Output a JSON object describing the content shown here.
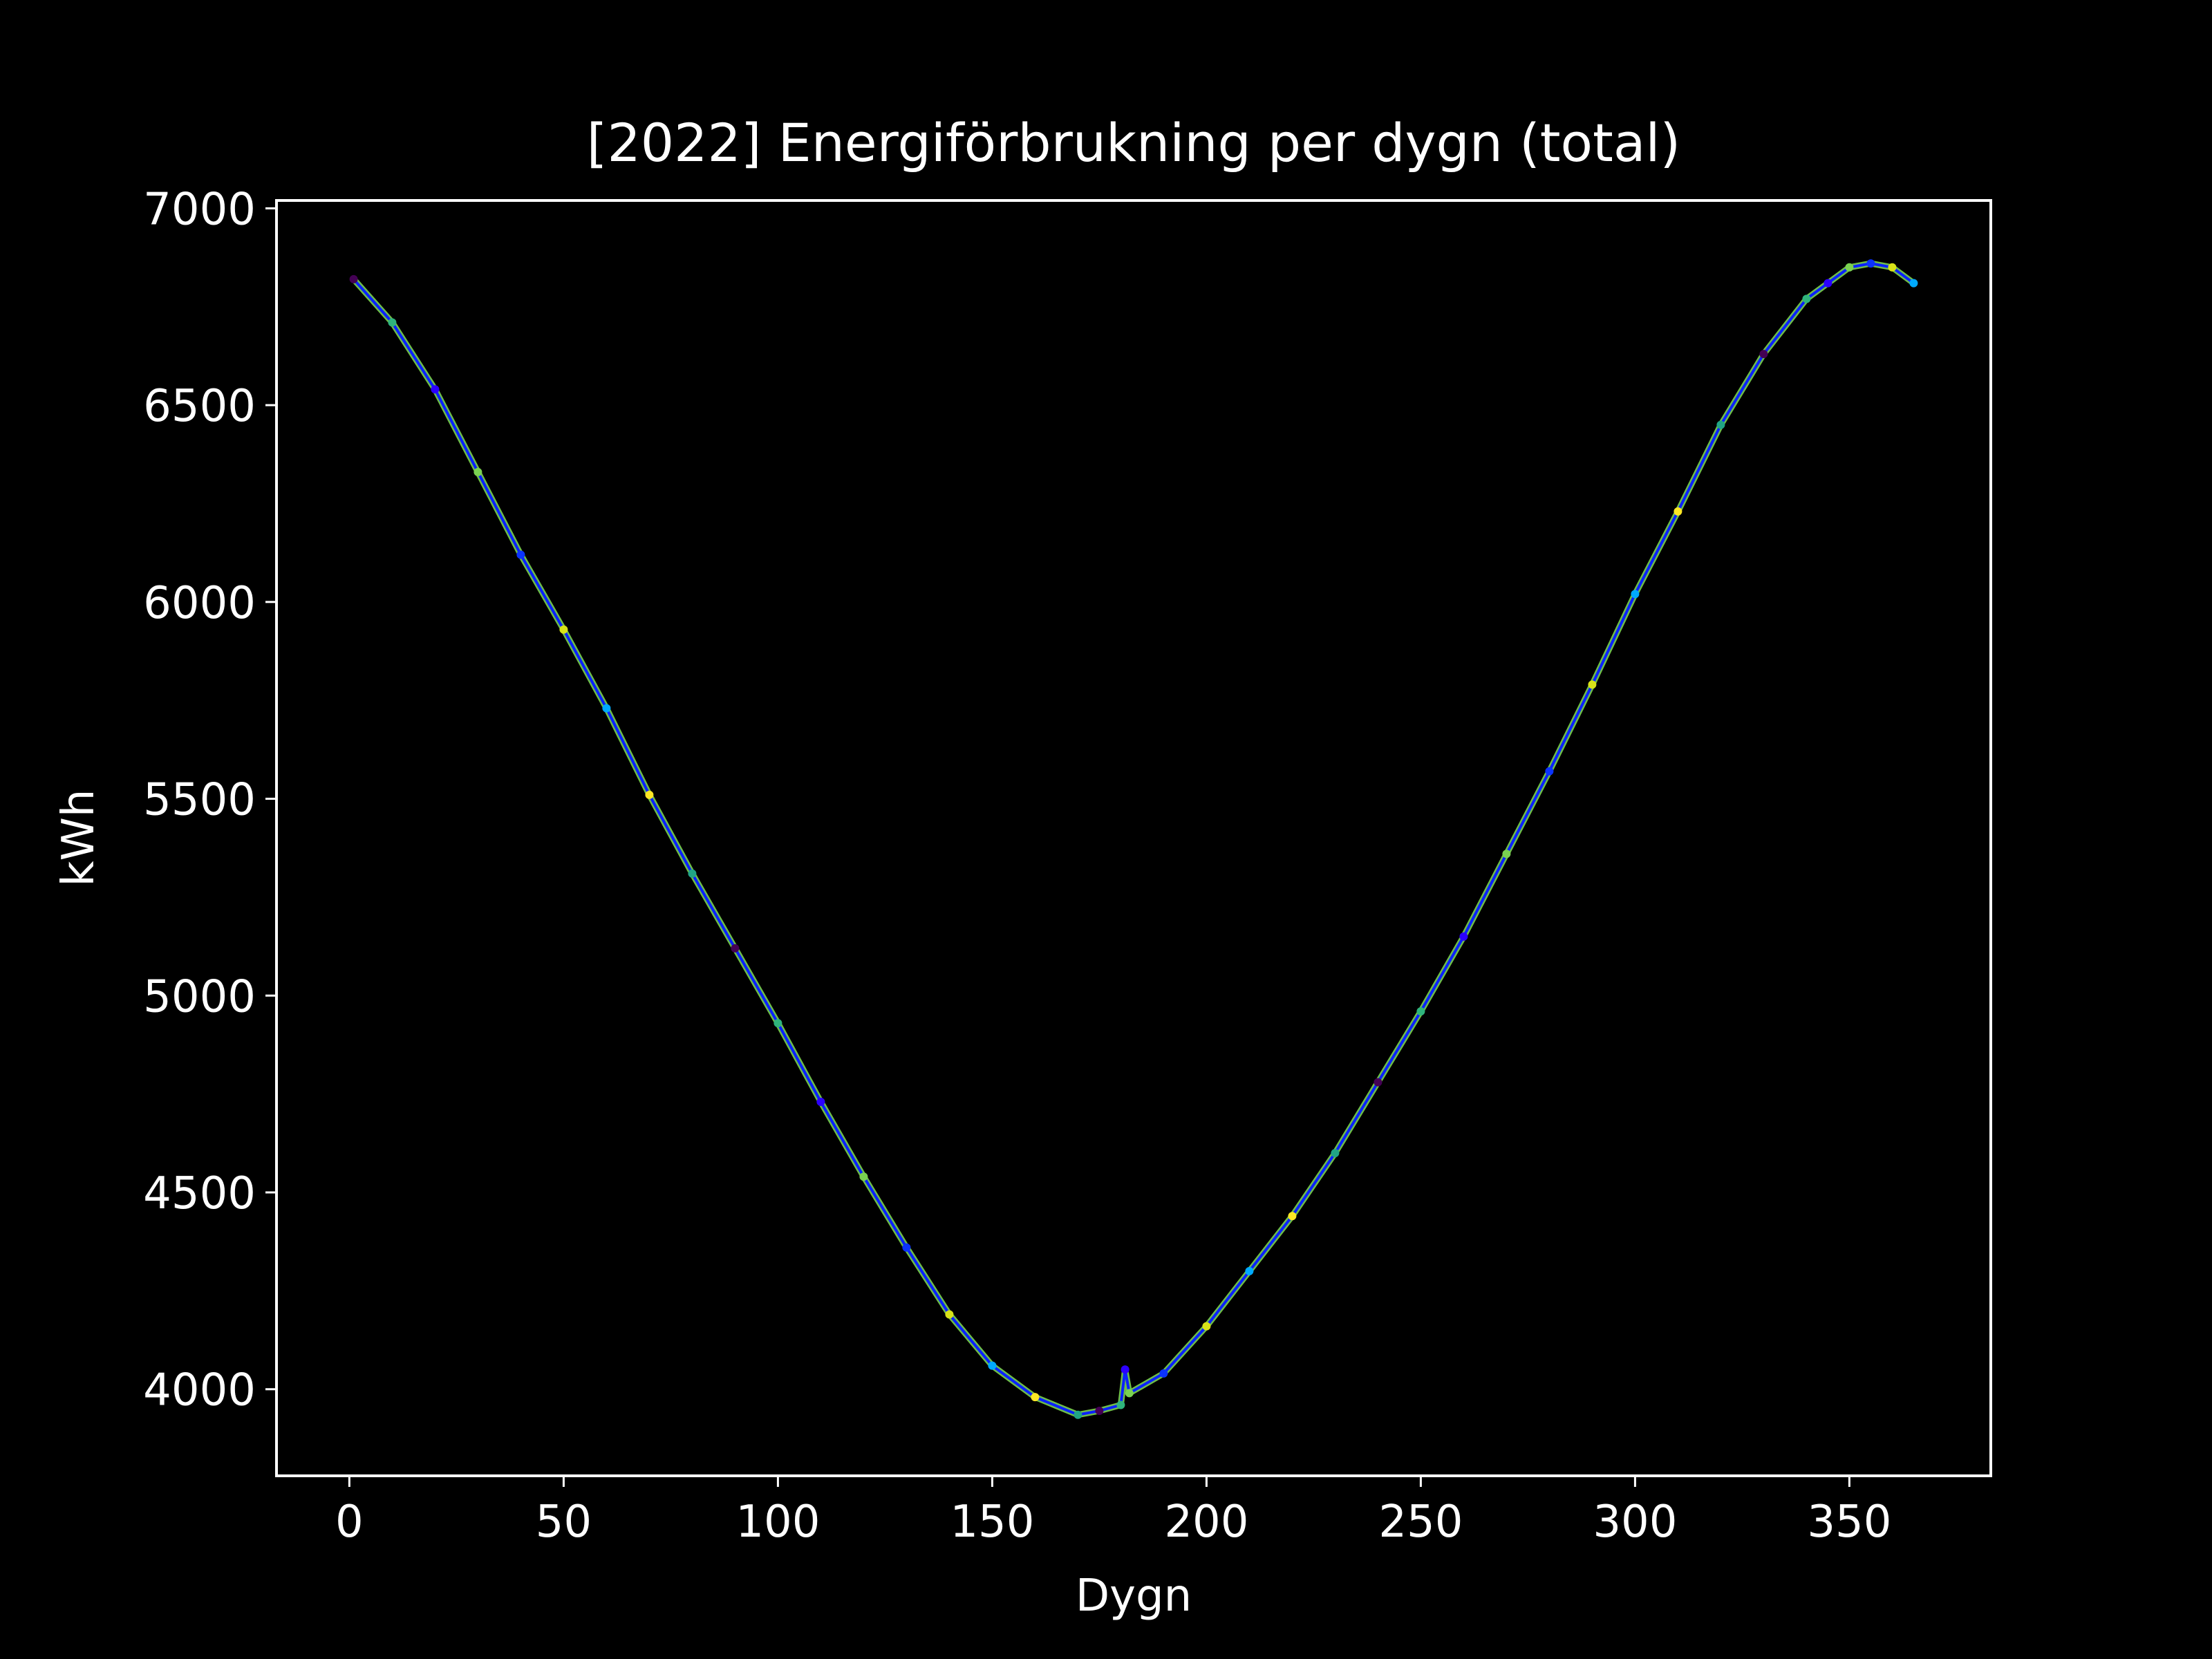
{
  "chart_data": {
    "type": "line",
    "title": "[2022] Energiförbrukning per dygn (total)",
    "xlabel": "Dygn",
    "ylabel": "kWh",
    "xlim": [
      -17,
      383
    ],
    "ylim": [
      3780,
      7020
    ],
    "x_ticks": [
      0,
      50,
      100,
      150,
      200,
      250,
      300,
      350
    ],
    "y_ticks": [
      4000,
      4500,
      5000,
      5500,
      6000,
      6500,
      7000
    ],
    "x_tick_labels": [
      "0",
      "50",
      "100",
      "150",
      "200",
      "250",
      "300",
      "350"
    ],
    "y_tick_labels": [
      "4000",
      "4500",
      "5000",
      "5500",
      "6000",
      "6500",
      "7000"
    ],
    "grid": false,
    "legend": "none",
    "background": "#000000",
    "foreground": "#ffffff",
    "point_colormap": [
      "#440154",
      "#2c00ff",
      "#0b33ff",
      "#00aaff",
      "#21a585",
      "#2fb47c",
      "#7ad151",
      "#d8e219",
      "#fde725"
    ],
    "series": [
      {
        "line_color": "#0a22ff",
        "x": [
          1,
          10,
          20,
          30,
          40,
          50,
          60,
          70,
          80,
          90,
          100,
          110,
          120,
          130,
          140,
          150,
          160,
          170,
          175,
          180,
          181,
          182,
          190,
          200,
          210,
          220,
          230,
          240,
          250,
          260,
          270,
          280,
          290,
          300,
          310,
          320,
          330,
          340,
          345,
          350,
          355,
          360,
          365
        ],
        "y": [
          6820,
          6710,
          6540,
          6330,
          6120,
          5930,
          5730,
          5510,
          5310,
          5120,
          4930,
          4730,
          4540,
          4360,
          4190,
          4060,
          3980,
          3935,
          3945,
          3960,
          4050,
          3990,
          4040,
          4160,
          4300,
          4440,
          4600,
          4780,
          4960,
          5150,
          5360,
          5570,
          5790,
          6020,
          6230,
          6450,
          6630,
          6770,
          6810,
          6850,
          6860,
          6850,
          6810
        ]
      }
    ]
  }
}
